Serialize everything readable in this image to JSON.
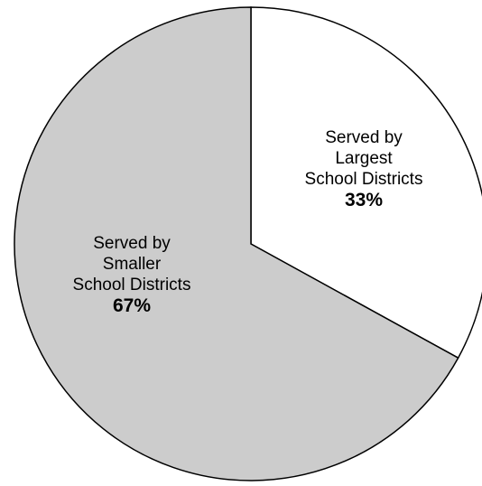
{
  "chart_data": {
    "type": "pie",
    "title": "",
    "start_angle_deg": 0,
    "direction": "clockwise",
    "slices": [
      {
        "label_lines": [
          "Served by",
          "Largest",
          "School Districts"
        ],
        "value": 33,
        "value_label": "33%",
        "color": "#ffffff"
      },
      {
        "label_lines": [
          "Served by",
          "Smaller",
          "School Districts"
        ],
        "value": 67,
        "value_label": "67%",
        "color": "#cccccc"
      }
    ],
    "outline_color": "#000000"
  }
}
